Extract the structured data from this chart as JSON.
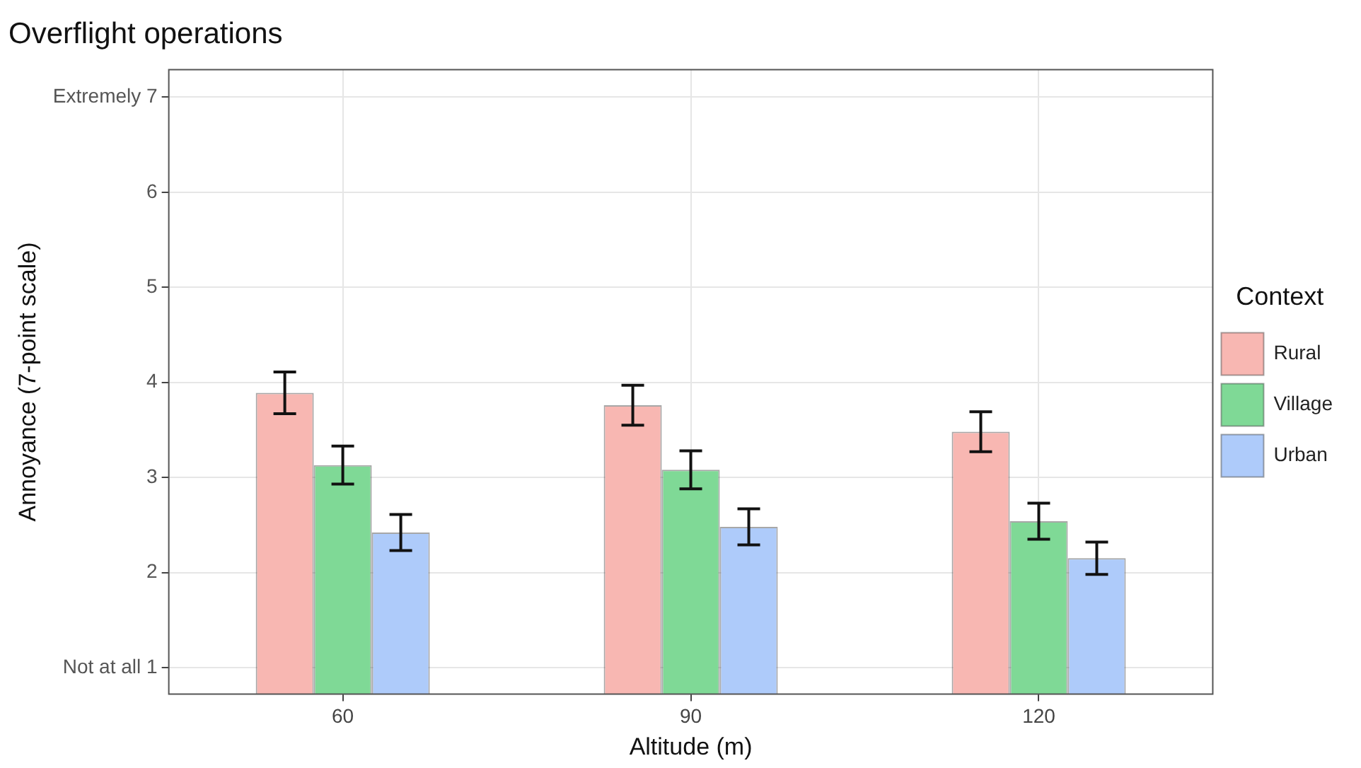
{
  "chart_data": {
    "type": "bar",
    "title": "Overflight operations",
    "xlabel": "Altitude (m)",
    "ylabel": "Annoyance (7-point scale)",
    "legend_title": "Context",
    "legend": "right",
    "grid": true,
    "categories": [
      "60",
      "90",
      "120"
    ],
    "series": [
      {
        "name": "Rural",
        "color": "#f8b7b2",
        "values": [
          3.89,
          3.76,
          3.48
        ],
        "errors": [
          0.22,
          0.21,
          0.21
        ]
      },
      {
        "name": "Village",
        "color": "#7fd996",
        "values": [
          3.13,
          3.08,
          2.54
        ],
        "errors": [
          0.2,
          0.2,
          0.19
        ]
      },
      {
        "name": "Urban",
        "color": "#aecbfa",
        "values": [
          2.42,
          2.48,
          2.15
        ],
        "errors": [
          0.19,
          0.19,
          0.17
        ]
      }
    ],
    "ylim": [
      0.72,
      7.29
    ],
    "yticks": [
      {
        "value": 1,
        "label": "Not at all 1"
      },
      2,
      3,
      4,
      5,
      6,
      {
        "value": 7,
        "label": "Extremely 7"
      }
    ]
  }
}
